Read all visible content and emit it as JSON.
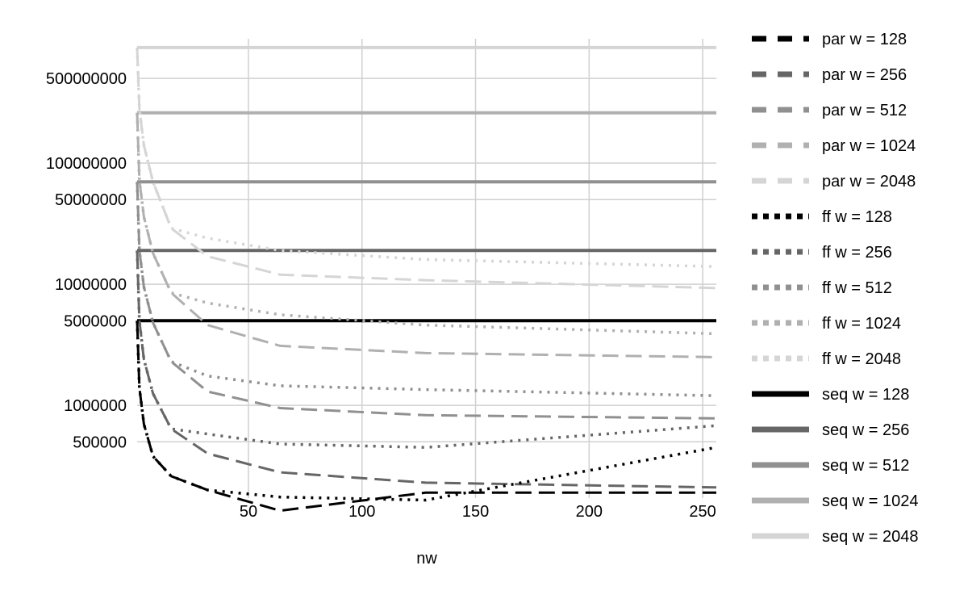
{
  "chart_data": {
    "type": "line",
    "xlabel": "nw",
    "ylabel": "",
    "xlim": [
      1,
      256
    ],
    "ylim_log": [
      200000,
      1000000000
    ],
    "y_scale": "log",
    "grid": true,
    "legend_position": "right",
    "x_ticks": [
      50,
      100,
      150,
      200,
      250
    ],
    "y_ticks": [
      {
        "value": 500000,
        "label": "500000"
      },
      {
        "value": 1000000,
        "label": "1000000"
      },
      {
        "value": 5000000,
        "label": "5000000"
      },
      {
        "value": 10000000,
        "label": "10000000"
      },
      {
        "value": 50000000,
        "label": "50000000"
      },
      {
        "value": 100000000,
        "label": "100000000"
      },
      {
        "value": 500000000,
        "label": "500000000"
      }
    ],
    "series": [
      {
        "name": "par w = 128",
        "style": "dash",
        "color": "#000000",
        "x": [
          1,
          2,
          4,
          8,
          16,
          32,
          64,
          128,
          256
        ],
        "y": [
          5000000,
          1400000,
          700000,
          380000,
          260000,
          200000,
          135000,
          190000,
          190000
        ]
      },
      {
        "name": "par w = 256",
        "style": "dash",
        "color": "#666666",
        "x": [
          1,
          2,
          4,
          8,
          16,
          32,
          64,
          128,
          256
        ],
        "y": [
          19000000,
          5000000,
          2400000,
          1250000,
          640000,
          400000,
          280000,
          230000,
          210000
        ]
      },
      {
        "name": "par w = 512",
        "style": "dash",
        "color": "#909090",
        "x": [
          1,
          2,
          4,
          8,
          16,
          32,
          64,
          128,
          256
        ],
        "y": [
          70000000,
          19000000,
          9500000,
          4800000,
          2300000,
          1300000,
          950000,
          830000,
          780000
        ]
      },
      {
        "name": "par w = 1024",
        "style": "dash",
        "color": "#b0b0b0",
        "x": [
          1,
          2,
          4,
          8,
          16,
          32,
          64,
          128,
          256
        ],
        "y": [
          260000000,
          72000000,
          36000000,
          18000000,
          8500000,
          4600000,
          3100000,
          2700000,
          2500000
        ]
      },
      {
        "name": "par w = 2048",
        "style": "dash",
        "color": "#d5d5d5",
        "x": [
          1,
          2,
          4,
          8,
          16,
          32,
          64,
          128,
          256
        ],
        "y": [
          900000000,
          280000000,
          140000000,
          70000000,
          29000000,
          17000000,
          12000000,
          10800000,
          9300000
        ]
      },
      {
        "name": "ff w = 128",
        "style": "dot",
        "color": "#000000",
        "x": [
          1,
          2,
          4,
          8,
          16,
          32,
          64,
          128,
          256
        ],
        "y": [
          5000000,
          1400000,
          700000,
          380000,
          260000,
          200000,
          175000,
          165000,
          450000
        ]
      },
      {
        "name": "ff w = 256",
        "style": "dot",
        "color": "#666666",
        "x": [
          1,
          2,
          4,
          8,
          16,
          32,
          64,
          128,
          256
        ],
        "y": [
          19000000,
          5000000,
          2400000,
          1250000,
          640000,
          580000,
          480000,
          450000,
          680000
        ]
      },
      {
        "name": "ff w = 512",
        "style": "dot",
        "color": "#909090",
        "x": [
          1,
          2,
          4,
          8,
          16,
          32,
          64,
          128,
          256
        ],
        "y": [
          70000000,
          19000000,
          9500000,
          4800000,
          2300000,
          1750000,
          1450000,
          1350000,
          1200000
        ]
      },
      {
        "name": "ff w = 1024",
        "style": "dot",
        "color": "#b0b0b0",
        "x": [
          1,
          2,
          4,
          8,
          16,
          32,
          64,
          128,
          256
        ],
        "y": [
          260000000,
          72000000,
          36000000,
          18000000,
          8500000,
          7000000,
          5600000,
          4600000,
          3900000
        ]
      },
      {
        "name": "ff w = 2048",
        "style": "dot",
        "color": "#d5d5d5",
        "x": [
          1,
          2,
          4,
          8,
          16,
          32,
          64,
          128,
          256
        ],
        "y": [
          900000000,
          280000000,
          140000000,
          70000000,
          29000000,
          24000000,
          19000000,
          16000000,
          14000000
        ]
      },
      {
        "name": "seq w = 128",
        "style": "solid",
        "color": "#000000",
        "x": [
          1,
          256
        ],
        "y": [
          5000000,
          5000000
        ]
      },
      {
        "name": "seq w = 256",
        "style": "solid",
        "color": "#666666",
        "x": [
          1,
          256
        ],
        "y": [
          19000000,
          19000000
        ]
      },
      {
        "name": "seq w = 512",
        "style": "solid",
        "color": "#909090",
        "x": [
          1,
          256
        ],
        "y": [
          70000000,
          70000000
        ]
      },
      {
        "name": "seq w = 1024",
        "style": "solid",
        "color": "#b0b0b0",
        "x": [
          1,
          256
        ],
        "y": [
          260000000,
          260000000
        ]
      },
      {
        "name": "seq w = 2048",
        "style": "solid",
        "color": "#d5d5d5",
        "x": [
          1,
          256
        ],
        "y": [
          900000000,
          900000000
        ]
      }
    ]
  }
}
